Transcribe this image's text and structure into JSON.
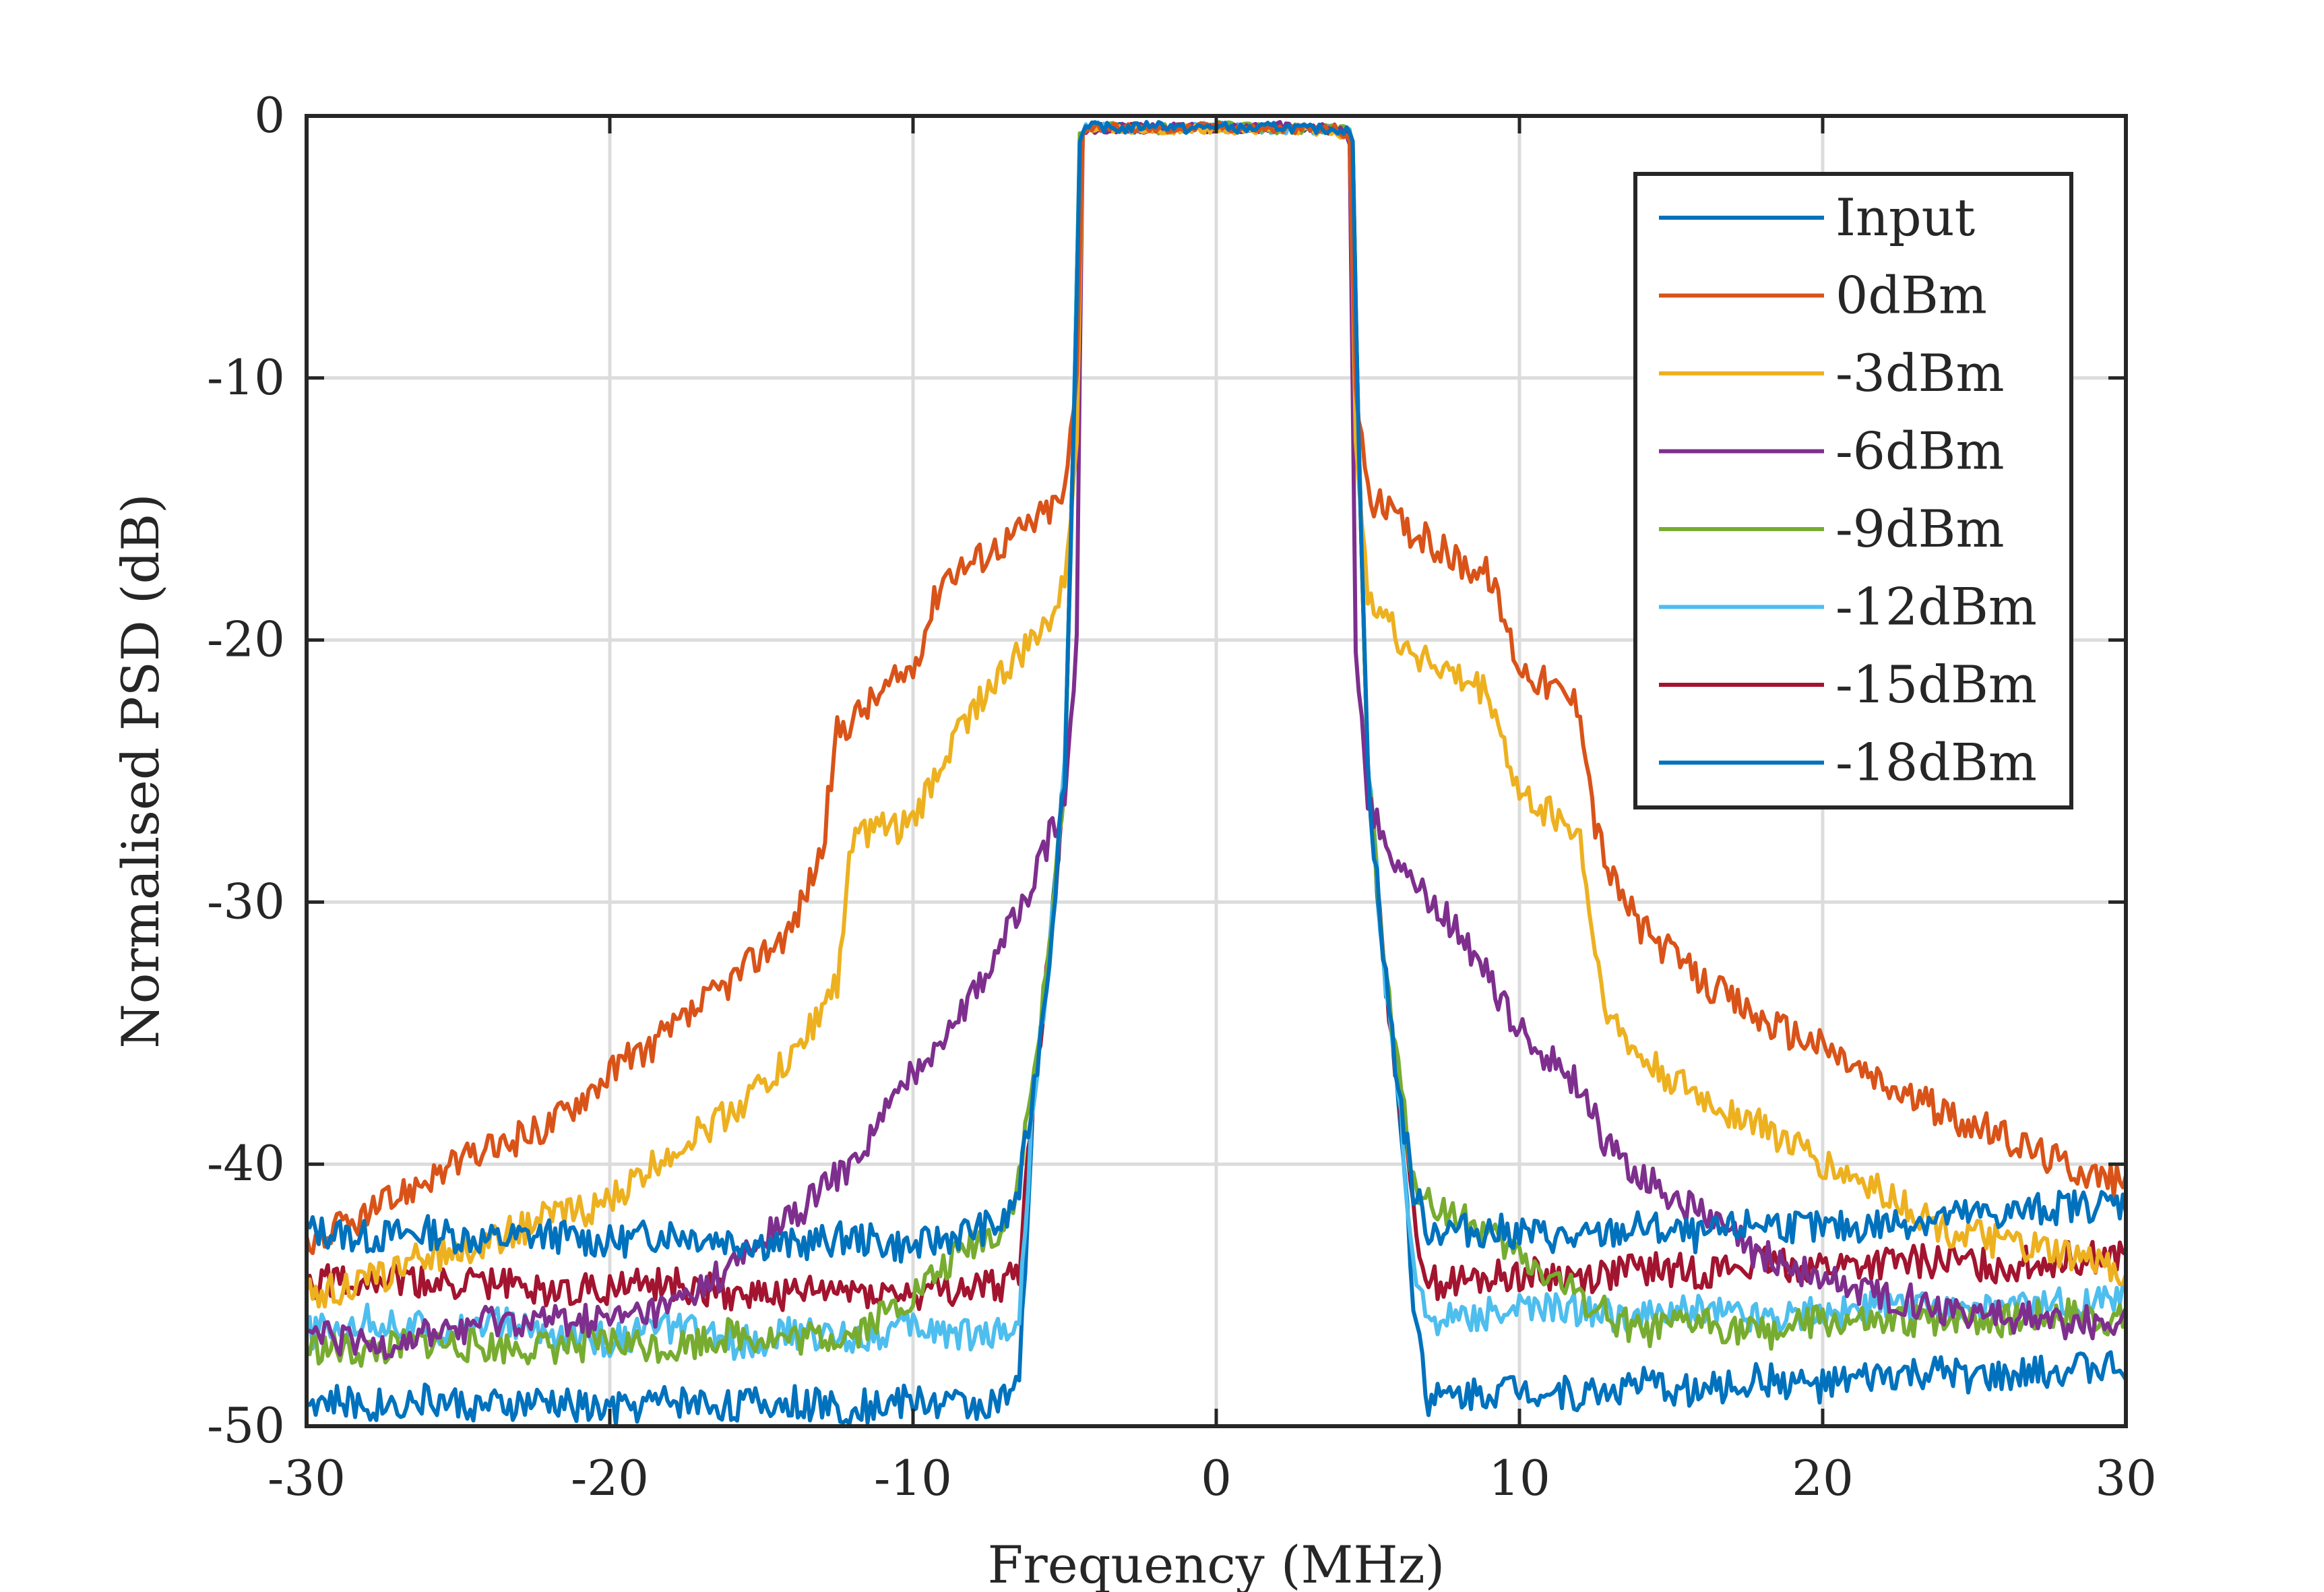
{
  "chart_data": {
    "type": "line",
    "title": "",
    "xlabel": "Frequency (MHz)",
    "ylabel": "Normalised PSD (dB)",
    "xlim": [
      -30,
      30
    ],
    "ylim": [
      -50,
      0
    ],
    "xticks": [
      -30,
      -20,
      -10,
      0,
      10,
      20,
      30
    ],
    "yticks": [
      0,
      -10,
      -20,
      -30,
      -40,
      -50
    ],
    "xtick_labels": [
      "-30",
      "-20",
      "-10",
      "0",
      "10",
      "20",
      "30"
    ],
    "ytick_labels": [
      "0",
      "-10",
      "-20",
      "-30",
      "-40",
      "-50"
    ],
    "grid": true,
    "legend_position": "top-right",
    "series": [
      {
        "name": "Input",
        "color": "#0072BD",
        "x": [
          -30,
          -28,
          -26,
          -24,
          -22,
          -20,
          -18,
          -16,
          -14,
          -12,
          -10,
          -8,
          -7,
          -6.5,
          -6,
          -5.5,
          -5,
          -4.7,
          -4.5,
          -4.4,
          -4,
          -3,
          -2,
          -1,
          0,
          1,
          2,
          3,
          4,
          4.4,
          4.5,
          4.7,
          5,
          5.5,
          6,
          6.5,
          7,
          8,
          10,
          12,
          14,
          16,
          18,
          20,
          22,
          24,
          26,
          28,
          30
        ],
        "y": [
          -42.5,
          -42.8,
          -42.6,
          -42.9,
          -42.7,
          -43.0,
          -42.6,
          -42.9,
          -43.1,
          -42.8,
          -43.2,
          -42.5,
          -42.3,
          -41.0,
          -37.0,
          -32.0,
          -25.0,
          -12.0,
          -1.0,
          -0.5,
          -0.4,
          -0.5,
          -0.3,
          -0.5,
          -0.4,
          -0.5,
          -0.4,
          -0.5,
          -0.5,
          -0.6,
          -1.5,
          -12.0,
          -25.0,
          -32.0,
          -37.0,
          -41.0,
          -42.5,
          -42.5,
          -42.6,
          -42.9,
          -42.4,
          -42.8,
          -42.2,
          -42.5,
          -42.3,
          -42.0,
          -41.9,
          -41.6,
          -41.5
        ]
      },
      {
        "name": "0dBm",
        "color": "#D95319",
        "x": [
          -30,
          -28,
          -26,
          -24,
          -22,
          -20,
          -18,
          -16,
          -14,
          -13,
          -12.5,
          -12,
          -10,
          -9,
          -8,
          -6,
          -5,
          -4.6,
          -4.4,
          -4,
          -2,
          0,
          2,
          4,
          4.4,
          4.6,
          5,
          6,
          8,
          9,
          10,
          12,
          12.5,
          13,
          14,
          16,
          18,
          20,
          22,
          24,
          26,
          28,
          30
        ],
        "y": [
          -43.0,
          -42.0,
          -40.5,
          -39.5,
          -38.5,
          -36.5,
          -35.0,
          -33.0,
          -31.0,
          -28.0,
          -23.5,
          -23.0,
          -21.0,
          -17.5,
          -17.0,
          -15.5,
          -14.5,
          -10.0,
          -0.5,
          -0.4,
          -0.5,
          -0.4,
          -0.5,
          -0.5,
          -1.0,
          -10.0,
          -14.5,
          -15.5,
          -17.0,
          -17.5,
          -21.0,
          -22.5,
          -27.0,
          -29.0,
          -31.0,
          -33.0,
          -34.5,
          -35.5,
          -37.0,
          -38.0,
          -39.0,
          -40.0,
          -40.8
        ]
      },
      {
        "name": "-3dBm",
        "color": "#EDB120",
        "x": [
          -30,
          -28,
          -26,
          -24,
          -22,
          -20,
          -18,
          -16,
          -14,
          -12.5,
          -12,
          -10,
          -9,
          -8,
          -6,
          -5,
          -4.6,
          -4.4,
          -4,
          -2,
          0,
          2,
          4,
          4.4,
          4.6,
          5,
          6,
          8,
          9,
          10,
          11,
          12,
          12.5,
          13,
          14,
          16,
          18,
          20,
          22,
          24,
          26,
          28,
          30
        ],
        "y": [
          -45.0,
          -44.5,
          -43.5,
          -43.0,
          -42.0,
          -41.5,
          -39.5,
          -38.0,
          -36.0,
          -33.0,
          -27.5,
          -27.0,
          -24.5,
          -22.5,
          -20.0,
          -18.0,
          -12.0,
          -0.5,
          -0.5,
          -0.5,
          -0.5,
          -0.5,
          -0.6,
          -1.0,
          -12.0,
          -18.0,
          -20.0,
          -21.5,
          -22.0,
          -26.0,
          -26.5,
          -27.5,
          -32.0,
          -34.5,
          -36.0,
          -37.5,
          -38.5,
          -40.0,
          -41.0,
          -42.5,
          -43.0,
          -43.5,
          -44.0
        ]
      },
      {
        "name": "-6dBm",
        "color": "#7E2F8E",
        "x": [
          -30,
          -28,
          -26,
          -24,
          -22,
          -20,
          -18,
          -16,
          -14,
          -12,
          -10,
          -8,
          -7,
          -6,
          -5,
          -4.6,
          -4.4,
          -4,
          -2,
          0,
          2,
          4,
          4.4,
          4.6,
          5,
          6,
          7,
          8,
          10,
          12,
          13,
          14,
          16,
          18,
          20,
          22,
          24,
          26,
          28,
          30
        ],
        "y": [
          -46.5,
          -47.0,
          -46.5,
          -46.0,
          -46.0,
          -46.0,
          -45.5,
          -44.0,
          -42.0,
          -40.0,
          -36.5,
          -33.5,
          -31.5,
          -29.0,
          -26.0,
          -20.0,
          -0.5,
          -0.5,
          -0.4,
          -0.5,
          -0.4,
          -0.5,
          -1.0,
          -20.0,
          -26.0,
          -28.5,
          -30.0,
          -31.0,
          -35.0,
          -37.0,
          -39.5,
          -40.5,
          -42.0,
          -43.5,
          -44.5,
          -45.0,
          -45.5,
          -45.8,
          -46.0,
          -46.0
        ]
      },
      {
        "name": "-9dBm",
        "color": "#77AC30",
        "x": [
          -30,
          -28,
          -26,
          -24,
          -22,
          -20,
          -18,
          -16,
          -14,
          -12,
          -10,
          -8,
          -7,
          -6.5,
          -6,
          -5.5,
          -5,
          -4.7,
          -4.5,
          -4.4,
          -4,
          -2,
          0,
          2,
          4,
          4.4,
          4.5,
          4.7,
          5,
          5.5,
          6,
          6.5,
          7,
          8,
          10,
          12,
          14,
          16,
          18,
          20,
          22,
          24,
          26,
          28,
          30
        ],
        "y": [
          -47.0,
          -47.2,
          -46.8,
          -47.0,
          -47.0,
          -46.8,
          -47.0,
          -46.5,
          -46.7,
          -46.5,
          -45.0,
          -43.0,
          -42.5,
          -40.5,
          -36.5,
          -32.0,
          -25.0,
          -12.0,
          -1.0,
          -0.5,
          -0.4,
          -0.5,
          -0.4,
          -0.5,
          -0.5,
          -0.6,
          -1.5,
          -12.0,
          -25.0,
          -32.0,
          -36.5,
          -40.5,
          -41.5,
          -42.0,
          -43.5,
          -45.0,
          -46.5,
          -46.0,
          -46.5,
          -46.0,
          -46.2,
          -45.8,
          -46.0,
          -45.7,
          -46.0
        ]
      },
      {
        "name": "-12dBm",
        "color": "#4DBEEE",
        "x": [
          -30,
          -28,
          -26,
          -24,
          -22,
          -20,
          -18,
          -16,
          -14,
          -12,
          -10,
          -8,
          -7,
          -6.5,
          -6,
          -5.5,
          -5,
          -4.7,
          -4.5,
          -4.4,
          -4,
          -2,
          0,
          2,
          4,
          4.4,
          4.5,
          4.7,
          5,
          5.5,
          6,
          6.5,
          7,
          8,
          10,
          12,
          14,
          16,
          18,
          20,
          22,
          24,
          26,
          28,
          30
        ],
        "y": [
          -46.5,
          -46.0,
          -46.3,
          -46.0,
          -46.5,
          -46.7,
          -46.2,
          -46.8,
          -46.5,
          -46.6,
          -46.2,
          -46.5,
          -46.3,
          -46.0,
          -37.0,
          -32.0,
          -25.0,
          -12.0,
          -1.0,
          -0.5,
          -0.4,
          -0.5,
          -0.4,
          -0.5,
          -0.5,
          -0.6,
          -1.5,
          -12.0,
          -25.0,
          -32.0,
          -37.0,
          -44.0,
          -46.0,
          -45.8,
          -45.5,
          -45.6,
          -45.9,
          -45.5,
          -45.8,
          -45.6,
          -45.5,
          -45.4,
          -45.6,
          -45.3,
          -45.2
        ]
      },
      {
        "name": "-15dBm",
        "color": "#A2142F",
        "x": [
          -30,
          -28,
          -26,
          -24,
          -22,
          -20,
          -18,
          -16,
          -14,
          -12,
          -10,
          -8,
          -7,
          -6.5,
          -6,
          -5.5,
          -5,
          -4.7,
          -4.5,
          -4.4,
          -4,
          -2,
          0,
          2,
          4,
          4.4,
          4.5,
          4.7,
          5,
          5.5,
          6,
          6.5,
          7,
          8,
          10,
          12,
          14,
          16,
          18,
          20,
          22,
          24,
          26,
          28,
          30
        ],
        "y": [
          -44.5,
          -44.3,
          -44.6,
          -44.5,
          -44.8,
          -44.7,
          -44.6,
          -44.9,
          -45.0,
          -44.8,
          -45.0,
          -44.7,
          -44.6,
          -44.0,
          -37.0,
          -32.0,
          -25.0,
          -12.0,
          -1.0,
          -0.5,
          -0.4,
          -0.5,
          -0.4,
          -0.5,
          -0.5,
          -0.6,
          -1.5,
          -12.0,
          -25.0,
          -32.0,
          -37.0,
          -42.0,
          -44.5,
          -44.5,
          -44.2,
          -44.3,
          -44.0,
          -44.1,
          -43.8,
          -43.9,
          -43.8,
          -43.7,
          -43.9,
          -43.6,
          -43.5
        ]
      },
      {
        "name": "-18dBm",
        "color": "#0072BD",
        "x": [
          -30,
          -28,
          -26,
          -24,
          -22,
          -20,
          -18,
          -16,
          -14,
          -12,
          -10,
          -8,
          -7,
          -6.5,
          -6,
          -5.5,
          -5,
          -4.7,
          -4.5,
          -4.4,
          -4,
          -2,
          0,
          2,
          4,
          4.4,
          4.5,
          4.7,
          5,
          5.5,
          6,
          6.5,
          7,
          8,
          10,
          12,
          14,
          16,
          18,
          20,
          22,
          24,
          26,
          28,
          30
        ],
        "y": [
          -49.0,
          -49.2,
          -49.0,
          -49.3,
          -49.1,
          -49.4,
          -49.0,
          -49.2,
          -49.1,
          -49.3,
          -49.0,
          -49.2,
          -49.0,
          -48.5,
          -37.0,
          -32.0,
          -25.0,
          -12.0,
          -1.0,
          -0.5,
          -0.4,
          -0.5,
          -0.4,
          -0.5,
          -0.5,
          -0.6,
          -1.5,
          -12.0,
          -25.0,
          -32.0,
          -37.0,
          -45.0,
          -49.0,
          -48.8,
          -48.5,
          -48.8,
          -48.4,
          -48.7,
          -48.2,
          -48.5,
          -48.1,
          -48.0,
          -48.2,
          -47.8,
          -47.7
        ]
      }
    ]
  }
}
